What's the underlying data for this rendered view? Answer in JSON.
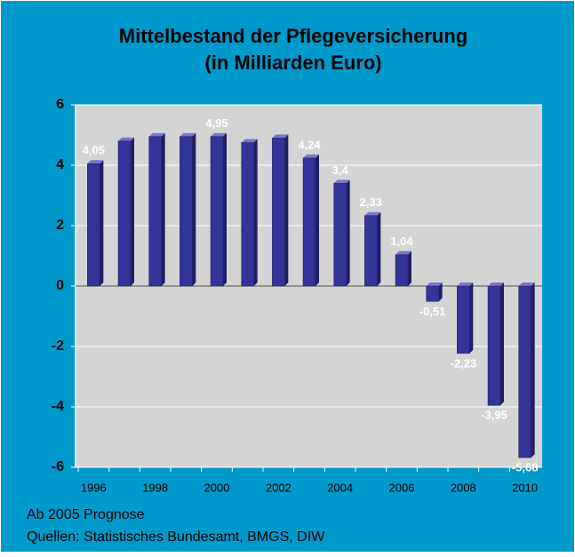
{
  "chart_data": {
    "type": "bar",
    "title": "Mittelbestand der Pflegeversicherung",
    "subtitle": "(in Milliarden Euro)",
    "categories": [
      "1996",
      null,
      "1998",
      null,
      "2000",
      null,
      "2002",
      null,
      "2004",
      null,
      "2006",
      null,
      "2008",
      null,
      "2010"
    ],
    "values": [
      4.05,
      4.8,
      4.95,
      4.95,
      4.95,
      4.75,
      4.9,
      4.24,
      3.4,
      2.33,
      1.04,
      -0.51,
      -2.23,
      -3.95,
      -5.68
    ],
    "value_labels": [
      "4,05",
      null,
      null,
      null,
      "4,95",
      null,
      null,
      "4,24",
      "3,4",
      "2,33",
      "1,04",
      "-0,51",
      "-2,23",
      "-3,95",
      "-5,68"
    ],
    "color": "#333399",
    "ylim": [
      -6,
      6
    ],
    "yticks": [
      -6,
      -4,
      -2,
      0,
      2,
      4,
      6
    ],
    "grid": true,
    "annotations": [
      "Ab 2005 Prognose",
      "Quellen: Statistisches Bundesamt, BMGS, DIW"
    ]
  }
}
